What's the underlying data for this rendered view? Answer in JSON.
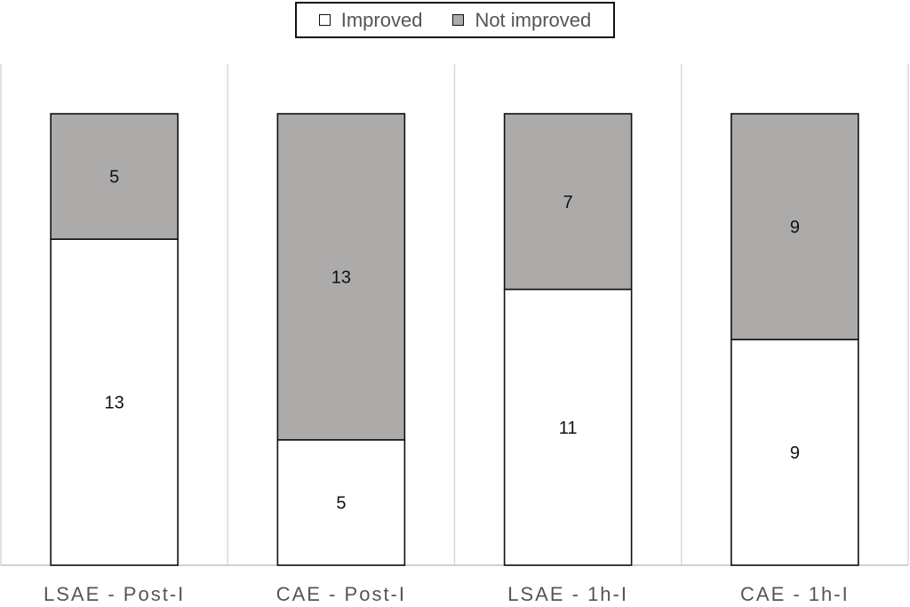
{
  "chart_data": {
    "type": "bar",
    "stacked": true,
    "title": "",
    "xlabel": "",
    "ylabel": "",
    "ylim": [
      0,
      18
    ],
    "categories": [
      "LSAE - Post-I",
      "CAE - Post-I",
      "LSAE - 1h-I",
      "CAE - 1h-I"
    ],
    "series": [
      {
        "name": "Improved",
        "values": [
          13,
          5,
          11,
          9
        ],
        "color": "#ffffff"
      },
      {
        "name": "Not improved",
        "values": [
          5,
          13,
          7,
          9
        ],
        "color": "#adaaaa"
      }
    ],
    "legend_position": "top-center",
    "grid": false
  }
}
